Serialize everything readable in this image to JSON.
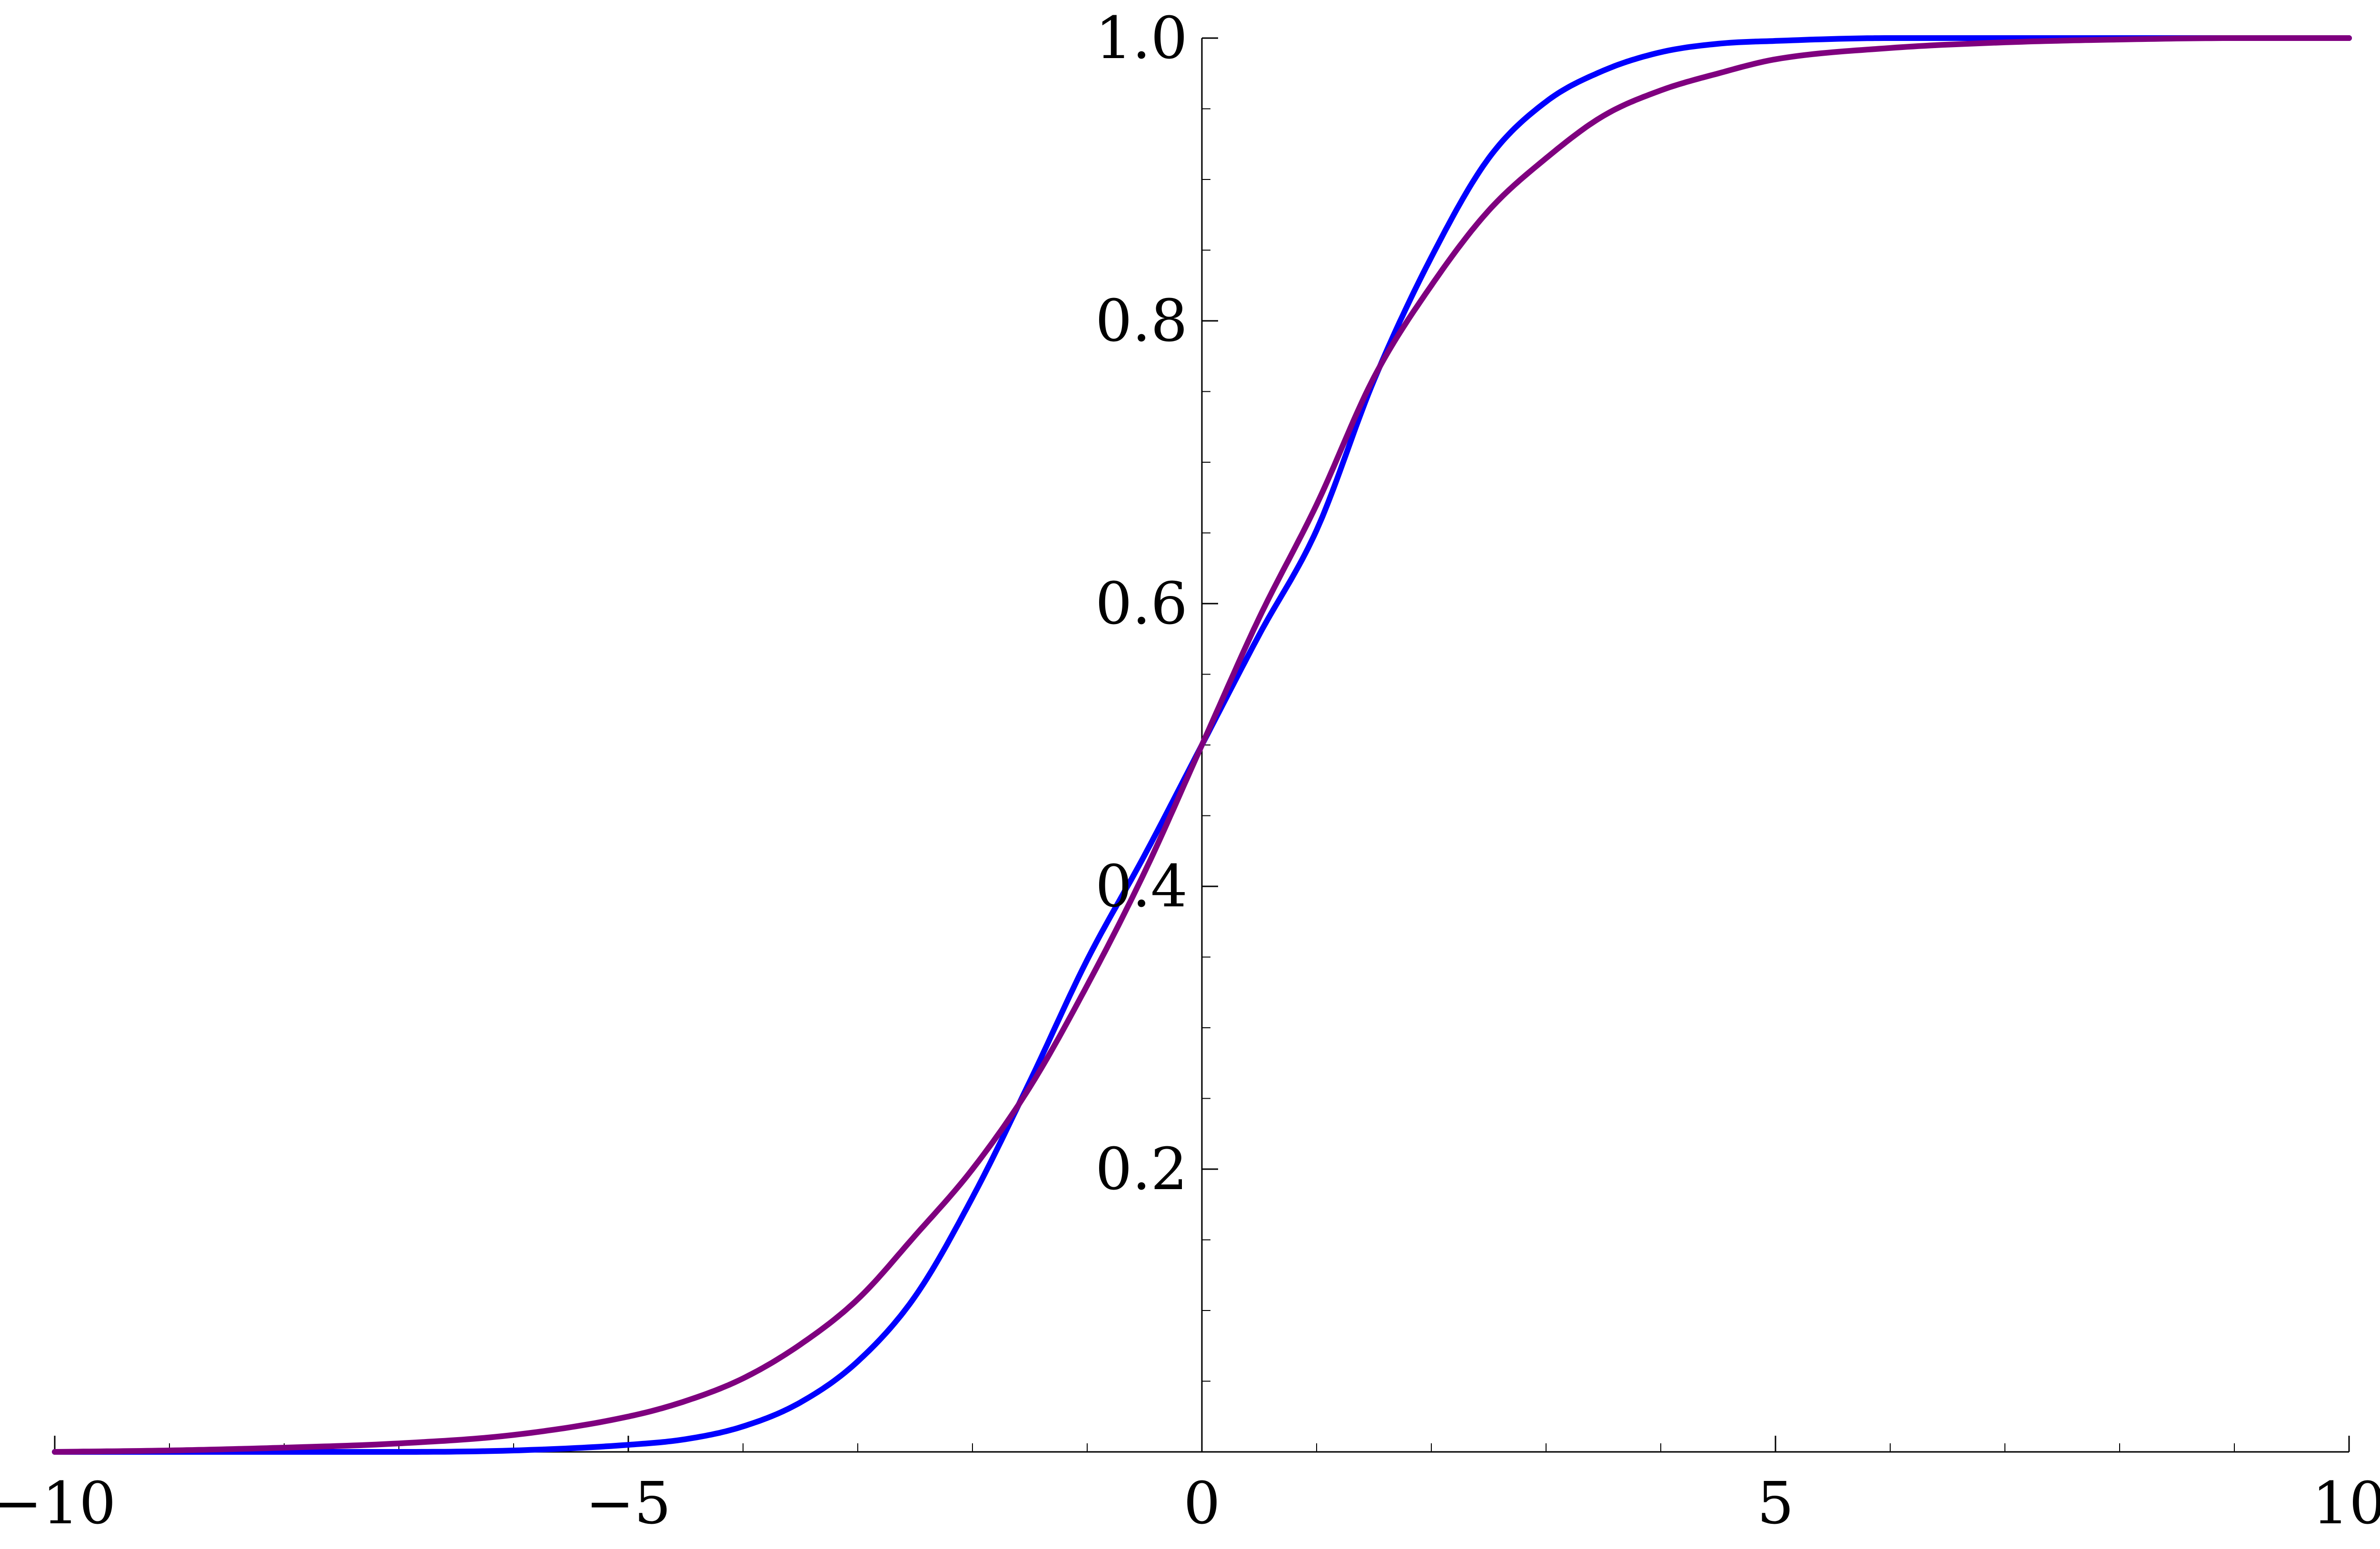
{
  "chart_data": {
    "type": "line",
    "title": "",
    "xlabel": "",
    "ylabel": "",
    "xlim": [
      -10,
      10
    ],
    "ylim": [
      0,
      1
    ],
    "grid": false,
    "legend": "none",
    "x_ticks": [
      -10,
      -5,
      0,
      5,
      10
    ],
    "x_tick_labels": [
      "−10",
      "−5",
      "0",
      "5",
      "10"
    ],
    "y_ticks": [
      0.2,
      0.4,
      0.6,
      0.8,
      1.0
    ],
    "y_tick_labels": [
      "0.2",
      "0.4",
      "0.6",
      "0.8",
      "1.0"
    ],
    "x": [
      -10,
      -9,
      -8,
      -7,
      -6,
      -5,
      -4.5,
      -4,
      -3.5,
      -3,
      -2.5,
      -2,
      -1.5,
      -1,
      -0.5,
      0,
      0.5,
      1,
      1.5,
      2,
      2.5,
      3,
      3.5,
      4,
      4.5,
      5,
      6,
      7,
      8,
      9,
      10
    ],
    "series": [
      {
        "color": "#0000ff",
        "values": [
          0.0,
          0.0,
          0.0,
          0.0,
          0.001,
          0.005,
          0.009,
          0.018,
          0.035,
          0.064,
          0.11,
          0.18,
          0.262,
          0.348,
          0.422,
          0.5,
          0.578,
          0.652,
          0.758,
          0.845,
          0.915,
          0.955,
          0.977,
          0.99,
          0.996,
          0.998,
          1.0,
          1.0,
          1.0,
          1.0,
          1.0
        ]
      },
      {
        "color": "#7f007f",
        "values": [
          0.0,
          0.001,
          0.003,
          0.006,
          0.012,
          0.025,
          0.036,
          0.052,
          0.076,
          0.108,
          0.153,
          0.2,
          0.258,
          0.33,
          0.41,
          0.5,
          0.59,
          0.67,
          0.76,
          0.825,
          0.878,
          0.915,
          0.945,
          0.963,
          0.975,
          0.985,
          0.993,
          0.997,
          0.999,
          1.0,
          1.0
        ]
      }
    ]
  }
}
